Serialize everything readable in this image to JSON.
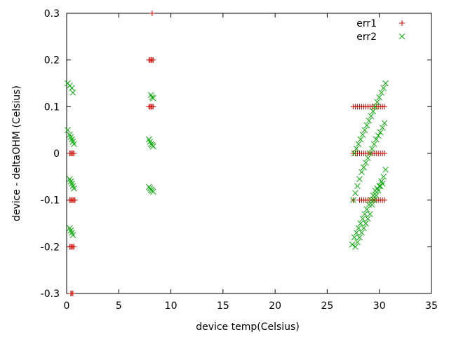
{
  "chart_data": {
    "type": "scatter",
    "title": "",
    "xlabel": "device temp(Celsius)",
    "ylabel": "device - deltaOHM (Celsius)",
    "xlim": [
      0,
      35
    ],
    "ylim": [
      -0.3,
      0.3
    ],
    "x_ticks": [
      "0",
      "5",
      "10",
      "15",
      "20",
      "25",
      "30",
      "35"
    ],
    "y_ticks": [
      "-0.3",
      "-0.2",
      "-0.1",
      "0",
      "0.1",
      "0.2",
      "0.3"
    ],
    "x_tick_values": [
      0,
      5,
      10,
      15,
      20,
      25,
      30,
      35
    ],
    "y_tick_values": [
      -0.3,
      -0.2,
      -0.1,
      0,
      0.1,
      0.2,
      0.3
    ],
    "grid": false,
    "legend_position": "top-right",
    "series": [
      {
        "name": "err1",
        "marker": "plus",
        "color": "#cc0000",
        "x": [
          0.3,
          0.4,
          0.5,
          0.6,
          0.7,
          0.3,
          0.4,
          0.5,
          0.6,
          0.7,
          0.8,
          0.3,
          0.4,
          0.5,
          0.6,
          0.7,
          0.4,
          0.5,
          0.6,
          7.9,
          8.0,
          8.1,
          8.2,
          8.3,
          7.9,
          8.0,
          8.1,
          8.2,
          8.3,
          8.2,
          27.5,
          27.7,
          27.9,
          28.1,
          28.3,
          28.5,
          28.7,
          28.9,
          29.1,
          29.3,
          29.5,
          29.7,
          29.9,
          30.1,
          30.3,
          30.5,
          27.5,
          27.7,
          27.9,
          28.1,
          28.3,
          28.5,
          28.7,
          28.9,
          29.1,
          29.3,
          29.5,
          29.7,
          29.9,
          30.1,
          30.3,
          30.5,
          27.5,
          28.1,
          28.3,
          28.5,
          28.7,
          28.9,
          29.1,
          29.3,
          29.5,
          29.7,
          29.9,
          30.1,
          30.3,
          30.5
        ],
        "y": [
          0,
          0,
          0,
          0,
          0,
          -0.1,
          -0.1,
          -0.1,
          -0.1,
          -0.1,
          -0.1,
          -0.2,
          -0.2,
          -0.2,
          -0.2,
          -0.2,
          -0.3,
          -0.3,
          -0.3,
          0.2,
          0.2,
          0.2,
          0.2,
          0.2,
          0.1,
          0.1,
          0.1,
          0.1,
          0.1,
          0.3,
          0.1,
          0.1,
          0.1,
          0.1,
          0.1,
          0.1,
          0.1,
          0.1,
          0.1,
          0.1,
          0.1,
          0.1,
          0.1,
          0.1,
          0.1,
          0.1,
          0,
          0,
          0,
          0,
          0,
          0,
          0,
          0,
          0,
          0,
          0,
          0,
          0,
          0,
          0,
          0,
          -0.1,
          -0.1,
          -0.1,
          -0.1,
          -0.1,
          -0.1,
          -0.1,
          -0.1,
          -0.1,
          -0.1,
          -0.1,
          -0.1,
          -0.1,
          -0.1
        ]
      },
      {
        "name": "err2",
        "marker": "cross",
        "color": "#00aa00",
        "x": [
          0.1,
          0.3,
          0.5,
          0.6,
          0.1,
          0.3,
          0.4,
          0.5,
          0.6,
          0.7,
          0.3,
          0.4,
          0.5,
          0.6,
          0.7,
          0.3,
          0.4,
          0.5,
          0.6,
          7.9,
          8.0,
          8.1,
          8.2,
          8.3,
          7.9,
          8.0,
          8.1,
          8.2,
          8.3,
          8.1,
          8.2,
          8.3,
          27.4,
          27.6,
          27.8,
          28.0,
          28.2,
          28.4,
          28.6,
          28.8,
          29.0,
          29.2,
          29.4,
          29.6,
          29.8,
          30.0,
          30.2,
          30.4,
          30.6,
          27.5,
          27.7,
          27.9,
          28.1,
          28.3,
          28.5,
          28.7,
          28.9,
          29.1,
          29.3,
          29.5,
          29.7,
          29.9,
          30.1,
          30.3,
          30.5,
          27.6,
          27.8,
          28.0,
          28.2,
          28.4,
          28.6,
          28.8,
          29.0,
          29.2,
          29.4,
          29.6,
          29.8,
          30.0,
          30.2,
          30.4,
          30.6,
          27.7,
          27.9,
          28.1,
          28.3,
          28.5,
          28.7,
          28.9,
          29.1,
          29.3,
          29.5,
          29.7,
          29.9,
          30.1,
          30.3
        ],
        "y": [
          0.15,
          0.145,
          0.14,
          0.13,
          0.05,
          0.04,
          0.035,
          0.03,
          0.025,
          0.02,
          -0.055,
          -0.06,
          -0.065,
          -0.07,
          -0.075,
          -0.16,
          -0.165,
          -0.17,
          -0.175,
          0.03,
          0.025,
          0.02,
          0.018,
          0.015,
          -0.072,
          -0.075,
          -0.078,
          -0.08,
          -0.082,
          0.125,
          0.12,
          0.118,
          -0.195,
          -0.18,
          -0.17,
          -0.16,
          -0.15,
          -0.14,
          -0.13,
          -0.12,
          -0.11,
          -0.1,
          -0.09,
          -0.08,
          -0.075,
          -0.07,
          -0.06,
          -0.05,
          -0.035,
          -0.1,
          -0.085,
          -0.07,
          -0.055,
          -0.04,
          -0.03,
          -0.02,
          -0.01,
          0,
          0.01,
          0.02,
          0.03,
          0.038,
          0.045,
          0.055,
          0.065,
          0,
          0.01,
          0.02,
          0.03,
          0.04,
          0.05,
          0.06,
          0.07,
          0.08,
          0.09,
          0.1,
          0.11,
          0.12,
          0.13,
          0.14,
          0.15,
          -0.2,
          -0.19,
          -0.18,
          -0.17,
          -0.16,
          -0.15,
          -0.14,
          -0.13,
          -0.11,
          -0.1,
          -0.09,
          -0.08,
          -0.07,
          -0.065
        ]
      }
    ]
  }
}
